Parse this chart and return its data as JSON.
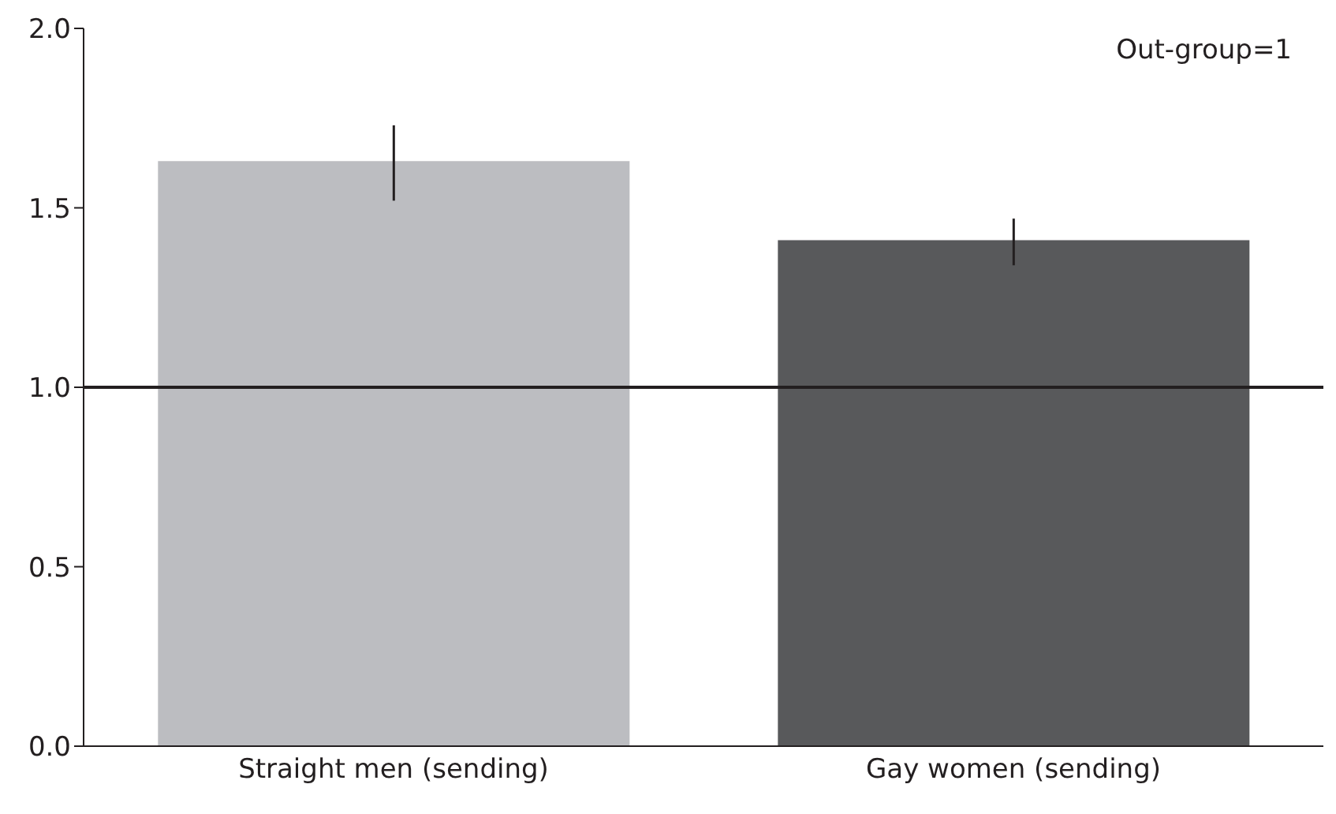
{
  "chart_data": {
    "type": "bar",
    "categories": [
      "Straight men (sending)",
      "Gay women (sending)"
    ],
    "values": [
      1.63,
      1.41
    ],
    "colors": [
      "#bcbdc1",
      "#58595b"
    ],
    "errors": [
      [
        1.52,
        1.73
      ],
      [
        1.34,
        1.47
      ]
    ],
    "ylim": [
      0,
      2
    ],
    "yticks": [
      {
        "value": 0,
        "label": "0.0"
      },
      {
        "value": 0.5,
        "label": "0.5"
      },
      {
        "value": 1,
        "label": "1.0"
      },
      {
        "value": 1.5,
        "label": "1.5"
      },
      {
        "value": 2,
        "label": "2.0"
      }
    ],
    "ref_lines": [
      {
        "axis": "y",
        "value": 1,
        "label": null,
        "color": "#231f20"
      }
    ],
    "annotations": [
      "Out-group=1"
    ],
    "grid": false,
    "legend": false
  }
}
